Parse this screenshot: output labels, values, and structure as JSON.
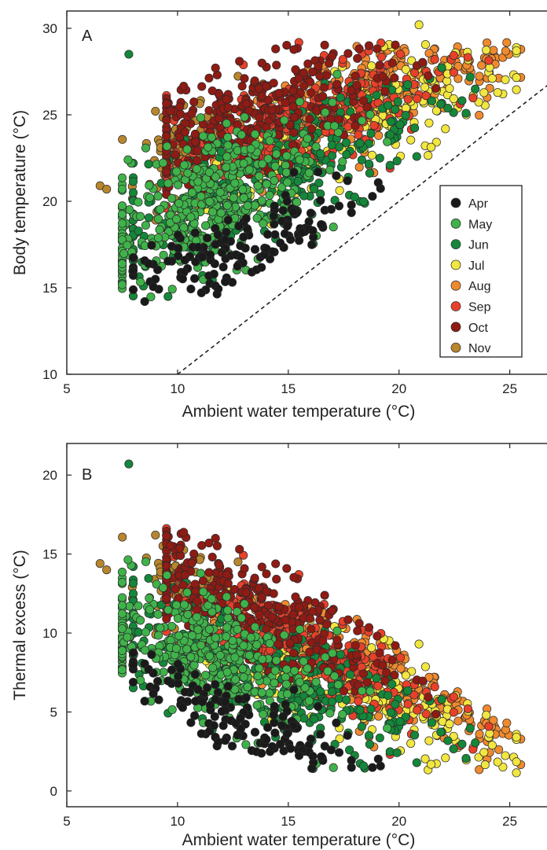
{
  "chart_data": [
    {
      "type": "scatter",
      "panel_label": "A",
      "title": "",
      "xlabel": "Ambient water temperature (°C)",
      "ylabel": "Body temperature (°C)",
      "xlim": [
        5,
        27
      ],
      "ylim": [
        10,
        31
      ],
      "xticks": [
        5,
        10,
        15,
        20,
        25
      ],
      "yticks": [
        10,
        15,
        20,
        25,
        30
      ],
      "legend_position": "right",
      "reference_line": {
        "style": "dashed",
        "equation": "y = x"
      },
      "series": [
        {
          "name": "Apr",
          "color": "#1a1a1a"
        },
        {
          "name": "May",
          "color": "#3fb24a"
        },
        {
          "name": "Jun",
          "color": "#14873a"
        },
        {
          "name": "Jul",
          "color": "#f2e640"
        },
        {
          "name": "Aug",
          "color": "#f08a2e"
        },
        {
          "name": "Sep",
          "color": "#e8412a"
        },
        {
          "name": "Oct",
          "color": "#8e1b14"
        },
        {
          "name": "Nov",
          "color": "#b8862c"
        }
      ],
      "outliers": [
        {
          "series": "Jun",
          "x": 7.8,
          "y": 28.5
        },
        {
          "series": "Nov",
          "x": 6.5,
          "y": 20.9
        },
        {
          "series": "Nov",
          "x": 6.8,
          "y": 20.7
        },
        {
          "series": "Jul",
          "x": 20.9,
          "y": 30.2
        }
      ]
    },
    {
      "type": "scatter",
      "panel_label": "B",
      "title": "",
      "xlabel": "Ambient water temperature (°C)",
      "ylabel": "Thermal excess (°C)",
      "xlim": [
        5,
        27
      ],
      "ylim": [
        -1,
        22
      ],
      "xticks": [
        5,
        10,
        15,
        20,
        25
      ],
      "yticks": [
        0,
        5,
        10,
        15,
        20
      ],
      "series": [
        {
          "name": "Apr",
          "color": "#1a1a1a"
        },
        {
          "name": "May",
          "color": "#3fb24a"
        },
        {
          "name": "Jun",
          "color": "#14873a"
        },
        {
          "name": "Jul",
          "color": "#f2e640"
        },
        {
          "name": "Aug",
          "color": "#f08a2e"
        },
        {
          "name": "Sep",
          "color": "#e8412a"
        },
        {
          "name": "Oct",
          "color": "#8e1b14"
        },
        {
          "name": "Nov",
          "color": "#b8862c"
        }
      ],
      "outliers": [
        {
          "series": "Jun",
          "x": 7.8,
          "y": 20.7
        },
        {
          "series": "Nov",
          "x": 6.5,
          "y": 14.4
        },
        {
          "series": "Nov",
          "x": 6.8,
          "y": 14.0
        }
      ]
    }
  ]
}
